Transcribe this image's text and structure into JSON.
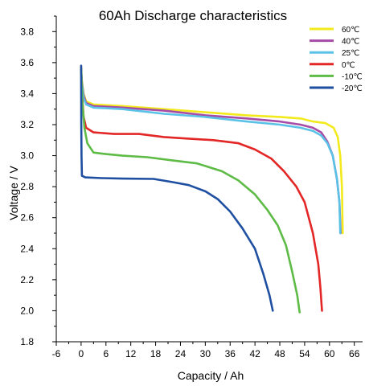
{
  "chart_data": {
    "type": "line",
    "title": "60Ah Discharge characteristics",
    "xlabel": "Capacity / Ah",
    "ylabel": "Voltage / V",
    "xlim": [
      -6,
      68
    ],
    "ylim": [
      1.8,
      3.9
    ],
    "x_ticks": [
      -6,
      0,
      6,
      12,
      18,
      24,
      30,
      36,
      42,
      48,
      54,
      60,
      66
    ],
    "y_ticks": [
      1.8,
      2.0,
      2.2,
      2.4,
      2.6,
      2.8,
      3.0,
      3.2,
      3.4,
      3.6,
      3.8
    ],
    "grid": false,
    "legend_position": "top-right",
    "series": [
      {
        "name": "60℃",
        "color": "#f2ea1c",
        "points": [
          [
            0,
            3.56
          ],
          [
            0.2,
            3.48
          ],
          [
            0.6,
            3.4
          ],
          [
            1.2,
            3.35
          ],
          [
            3,
            3.33
          ],
          [
            10,
            3.32
          ],
          [
            20,
            3.3
          ],
          [
            30,
            3.28
          ],
          [
            40,
            3.26
          ],
          [
            48,
            3.25
          ],
          [
            53,
            3.24
          ],
          [
            56,
            3.22
          ],
          [
            59,
            3.21
          ],
          [
            61,
            3.18
          ],
          [
            62,
            3.12
          ],
          [
            62.6,
            3.0
          ],
          [
            63,
            2.8
          ],
          [
            63.2,
            2.5
          ]
        ]
      },
      {
        "name": "40℃",
        "color": "#a64ca6",
        "points": [
          [
            0,
            3.56
          ],
          [
            0.2,
            3.47
          ],
          [
            0.6,
            3.39
          ],
          [
            1.2,
            3.34
          ],
          [
            3,
            3.32
          ],
          [
            10,
            3.31
          ],
          [
            20,
            3.29
          ],
          [
            30,
            3.26
          ],
          [
            40,
            3.24
          ],
          [
            48,
            3.22
          ],
          [
            53,
            3.2
          ],
          [
            56,
            3.18
          ],
          [
            58,
            3.15
          ],
          [
            59.5,
            3.09
          ],
          [
            60.8,
            3.0
          ],
          [
            61.8,
            2.85
          ],
          [
            62.4,
            2.7
          ],
          [
            62.7,
            2.5
          ]
        ]
      },
      {
        "name": "25℃",
        "color": "#5bc2e7",
        "points": [
          [
            0,
            3.56
          ],
          [
            0.2,
            3.46
          ],
          [
            0.6,
            3.37
          ],
          [
            1.2,
            3.33
          ],
          [
            3,
            3.31
          ],
          [
            10,
            3.3
          ],
          [
            20,
            3.27
          ],
          [
            30,
            3.25
          ],
          [
            40,
            3.22
          ],
          [
            48,
            3.2
          ],
          [
            53,
            3.18
          ],
          [
            56,
            3.16
          ],
          [
            58,
            3.13
          ],
          [
            59.5,
            3.08
          ],
          [
            60.8,
            3.0
          ],
          [
            61.8,
            2.85
          ],
          [
            62.4,
            2.7
          ],
          [
            62.6,
            2.5
          ]
        ]
      },
      {
        "name": "0℃",
        "color": "#e32626",
        "points": [
          [
            0,
            3.57
          ],
          [
            0.2,
            3.4
          ],
          [
            0.6,
            3.25
          ],
          [
            1.2,
            3.18
          ],
          [
            3,
            3.15
          ],
          [
            8,
            3.14
          ],
          [
            14,
            3.14
          ],
          [
            20,
            3.12
          ],
          [
            26,
            3.11
          ],
          [
            32,
            3.1
          ],
          [
            38,
            3.08
          ],
          [
            42,
            3.04
          ],
          [
            46,
            2.98
          ],
          [
            49,
            2.9
          ],
          [
            52,
            2.8
          ],
          [
            54,
            2.7
          ],
          [
            56,
            2.5
          ],
          [
            57.3,
            2.3
          ],
          [
            57.8,
            2.15
          ],
          [
            58.2,
            2.0
          ]
        ]
      },
      {
        "name": "-10℃",
        "color": "#5dbb46",
        "points": [
          [
            0,
            3.57
          ],
          [
            0.3,
            3.35
          ],
          [
            0.8,
            3.18
          ],
          [
            1.5,
            3.08
          ],
          [
            3,
            3.02
          ],
          [
            6,
            3.01
          ],
          [
            10,
            3.0
          ],
          [
            16,
            2.99
          ],
          [
            22,
            2.97
          ],
          [
            28,
            2.95
          ],
          [
            34,
            2.9
          ],
          [
            38,
            2.84
          ],
          [
            42,
            2.75
          ],
          [
            45,
            2.65
          ],
          [
            47.5,
            2.55
          ],
          [
            49.5,
            2.42
          ],
          [
            51,
            2.25
          ],
          [
            52.2,
            2.1
          ],
          [
            52.8,
            1.99
          ]
        ]
      },
      {
        "name": "-20℃",
        "color": "#1f4fa0",
        "points": [
          [
            0,
            3.58
          ],
          [
            0.05,
            3.2
          ],
          [
            0.1,
            3.0
          ],
          [
            0.2,
            2.87
          ],
          [
            1,
            2.86
          ],
          [
            5,
            2.855
          ],
          [
            10,
            2.852
          ],
          [
            17.5,
            2.85
          ],
          [
            22,
            2.83
          ],
          [
            26,
            2.81
          ],
          [
            30,
            2.77
          ],
          [
            33,
            2.72
          ],
          [
            36,
            2.64
          ],
          [
            39,
            2.53
          ],
          [
            42,
            2.4
          ],
          [
            44,
            2.24
          ],
          [
            45.5,
            2.1
          ],
          [
            46.3,
            2.0
          ]
        ]
      }
    ]
  }
}
